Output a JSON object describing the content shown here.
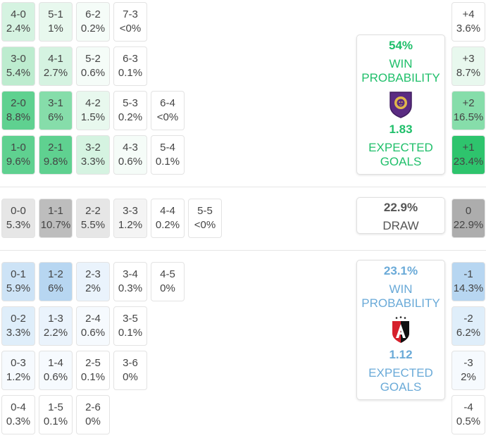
{
  "home": {
    "win_probability": "54%",
    "win_label_line1": "WIN",
    "win_label_line2": "PROBABILITY",
    "expected_goals": "1.83",
    "xg_label_line1": "EXPECTED",
    "xg_label_line2": "GOALS",
    "logo_text": "ORLANDO CITY",
    "color": "#1fbf6a",
    "rows": [
      [
        {
          "score": "4-0",
          "pct": "2.4%"
        },
        {
          "score": "5-1",
          "pct": "1%"
        },
        {
          "score": "6-2",
          "pct": "0.2%"
        },
        {
          "score": "7-3",
          "pct": "<0%"
        }
      ],
      [
        {
          "score": "3-0",
          "pct": "5.4%"
        },
        {
          "score": "4-1",
          "pct": "2.7%"
        },
        {
          "score": "5-2",
          "pct": "0.6%"
        },
        {
          "score": "6-3",
          "pct": "0.1%"
        }
      ],
      [
        {
          "score": "2-0",
          "pct": "8.8%"
        },
        {
          "score": "3-1",
          "pct": "6%"
        },
        {
          "score": "4-2",
          "pct": "1.5%"
        },
        {
          "score": "5-3",
          "pct": "0.2%"
        },
        {
          "score": "6-4",
          "pct": "<0%"
        }
      ],
      [
        {
          "score": "1-0",
          "pct": "9.6%"
        },
        {
          "score": "2-1",
          "pct": "9.8%"
        },
        {
          "score": "3-2",
          "pct": "3.3%"
        },
        {
          "score": "4-3",
          "pct": "0.6%"
        },
        {
          "score": "5-4",
          "pct": "0.1%"
        }
      ]
    ],
    "margins": [
      {
        "label": "+4",
        "pct": "3.6%"
      },
      {
        "label": "+3",
        "pct": "8.7%"
      },
      {
        "label": "+2",
        "pct": "16.5%"
      },
      {
        "label": "+1",
        "pct": "23.4%"
      }
    ]
  },
  "draw": {
    "probability": "22.9%",
    "label": "DRAW",
    "row": [
      {
        "score": "0-0",
        "pct": "5.3%"
      },
      {
        "score": "1-1",
        "pct": "10.7%"
      },
      {
        "score": "2-2",
        "pct": "5.5%"
      },
      {
        "score": "3-3",
        "pct": "1.2%"
      },
      {
        "score": "4-4",
        "pct": "0.2%"
      },
      {
        "score": "5-5",
        "pct": "<0%"
      }
    ],
    "margin": {
      "label": "0",
      "pct": "22.9%"
    }
  },
  "away": {
    "win_probability": "23.1%",
    "win_label_line1": "WIN",
    "win_label_line2": "PROBABILITY",
    "expected_goals": "1.12",
    "xg_label_line1": "EXPECTED",
    "xg_label_line2": "GOALS",
    "logo_text": "A",
    "color": "#6aaad8",
    "rows": [
      [
        {
          "score": "0-1",
          "pct": "5.9%"
        },
        {
          "score": "1-2",
          "pct": "6%"
        },
        {
          "score": "2-3",
          "pct": "2%"
        },
        {
          "score": "3-4",
          "pct": "0.3%"
        },
        {
          "score": "4-5",
          "pct": "0%"
        }
      ],
      [
        {
          "score": "0-2",
          "pct": "3.3%"
        },
        {
          "score": "1-3",
          "pct": "2.2%"
        },
        {
          "score": "2-4",
          "pct": "0.6%"
        },
        {
          "score": "3-5",
          "pct": "0.1%"
        }
      ],
      [
        {
          "score": "0-3",
          "pct": "1.2%"
        },
        {
          "score": "1-4",
          "pct": "0.6%"
        },
        {
          "score": "2-5",
          "pct": "0.1%"
        },
        {
          "score": "3-6",
          "pct": "0%"
        }
      ],
      [
        {
          "score": "0-4",
          "pct": "0.3%"
        },
        {
          "score": "1-5",
          "pct": "0.1%"
        },
        {
          "score": "2-6",
          "pct": "0%"
        }
      ]
    ],
    "margins": [
      {
        "label": "-1",
        "pct": "14.3%"
      },
      {
        "label": "-2",
        "pct": "6.2%"
      },
      {
        "label": "-3",
        "pct": "2%"
      },
      {
        "label": "-4",
        "pct": "0.5%"
      }
    ]
  }
}
